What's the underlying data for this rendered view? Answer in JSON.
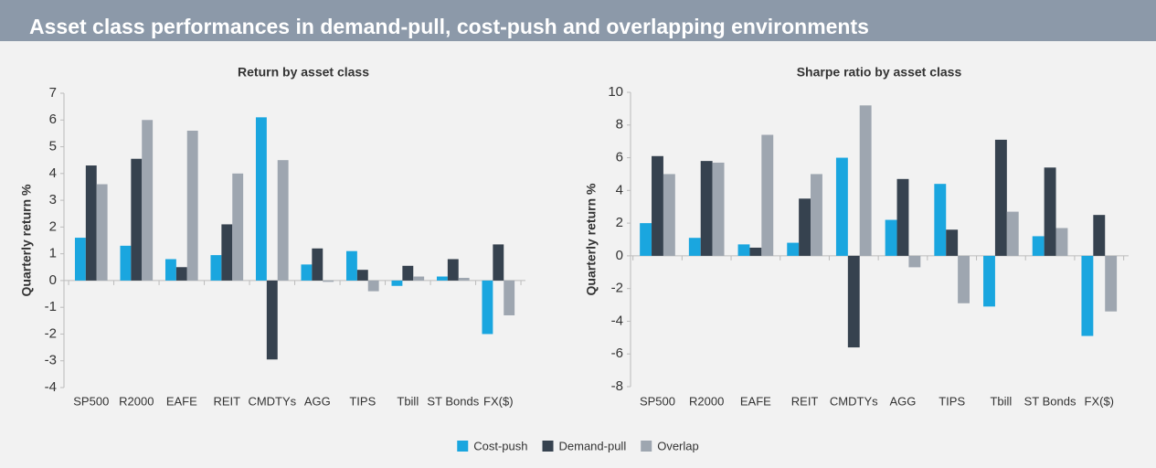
{
  "title": "Asset class performances in demand-pull, cost-push and overlapping environments",
  "legend_position": "bottom",
  "chart_data": [
    {
      "type": "bar",
      "title": "Return by asset class",
      "y_label": "Quarterly return %",
      "categories": [
        "SP500",
        "R2000",
        "EAFE",
        "REIT",
        "CMDTYs",
        "AGG",
        "TIPS",
        "Tbill",
        "ST Bonds",
        "FX($)"
      ],
      "series": [
        {
          "name": "Cost-push",
          "color": "#1aa6df",
          "values": [
            1.6,
            1.3,
            0.8,
            0.95,
            6.1,
            0.6,
            1.1,
            -0.2,
            0.15,
            -2.0
          ]
        },
        {
          "name": "Demand-pull",
          "color": "#36424f",
          "values": [
            4.3,
            4.55,
            0.5,
            2.1,
            -2.95,
            1.2,
            0.4,
            0.55,
            0.8,
            1.35
          ]
        },
        {
          "name": "Overlap",
          "color": "#9ea6b0",
          "values": [
            3.6,
            6.0,
            5.6,
            4.0,
            4.5,
            -0.05,
            -0.4,
            0.15,
            0.1,
            -1.3
          ]
        }
      ],
      "ylim": [
        -4,
        7
      ],
      "yticks": [
        -4,
        -3,
        -2,
        -1,
        0,
        1,
        2,
        3,
        4,
        5,
        6,
        7
      ]
    },
    {
      "type": "bar",
      "title": "Sharpe ratio by asset class",
      "y_label": "Quarterly return %",
      "categories": [
        "SP500",
        "R2000",
        "EAFE",
        "REIT",
        "CMDTYs",
        "AGG",
        "TIPS",
        "Tbill",
        "ST Bonds",
        "FX($)"
      ],
      "series": [
        {
          "color": "#1aa6df",
          "values": [
            2.0,
            1.1,
            0.7,
            0.8,
            6.0,
            2.2,
            4.4,
            -3.1,
            1.2,
            -4.9
          ]
        },
        {
          "color": "#36424f",
          "values": [
            6.1,
            5.8,
            0.5,
            3.5,
            -5.6,
            4.7,
            1.6,
            7.1,
            5.4,
            2.5
          ]
        },
        {
          "color": "#9ea6b0",
          "values": [
            5.0,
            5.7,
            7.4,
            5.0,
            9.2,
            -0.7,
            -2.9,
            2.7,
            1.7,
            -3.4
          ]
        }
      ],
      "ylim": [
        -8,
        10
      ],
      "yticks": [
        -8,
        -6,
        -4,
        -2,
        0,
        2,
        4,
        6,
        8,
        10
      ]
    }
  ]
}
